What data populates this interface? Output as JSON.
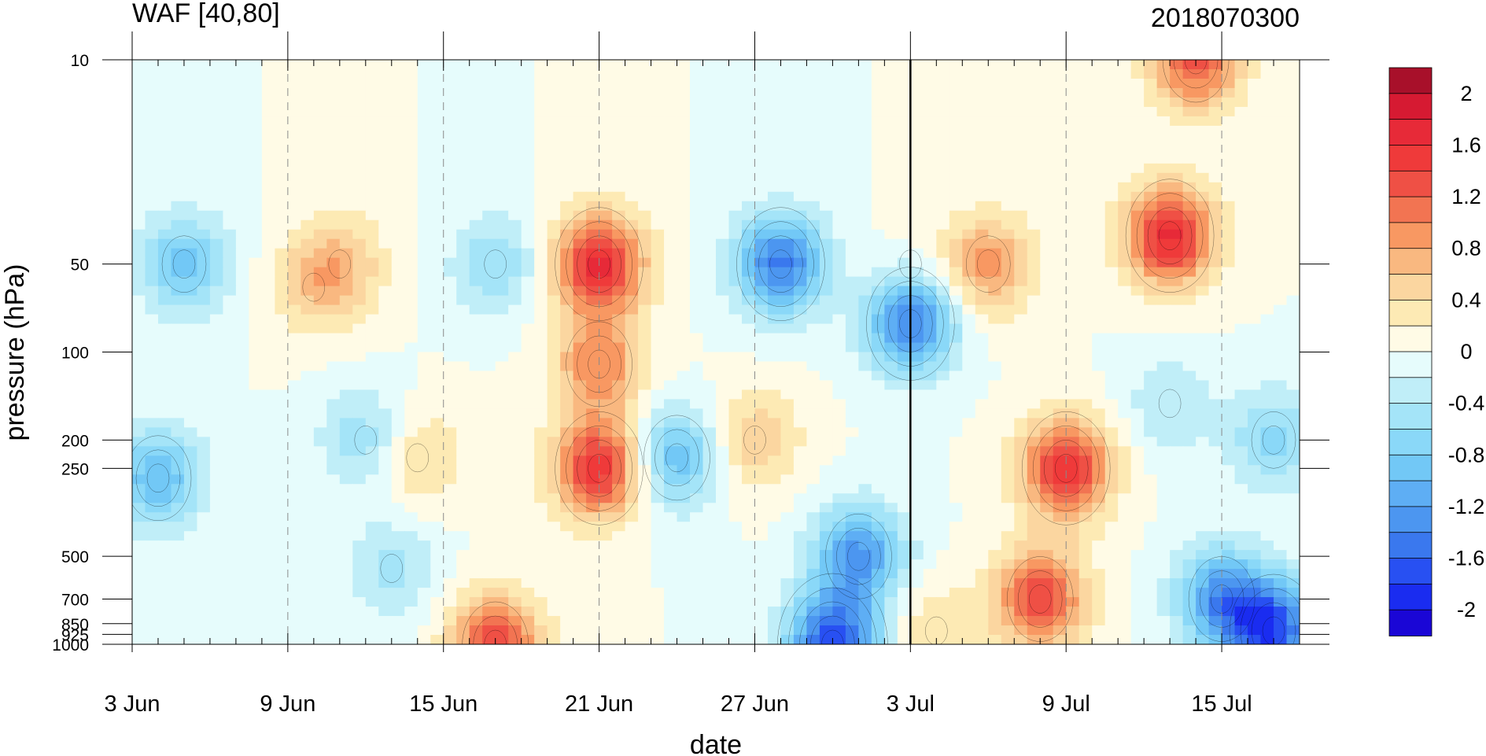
{
  "chart_data": {
    "type": "heatmap",
    "title": "WAF [40,80]",
    "subtitle": "2018070300",
    "xlabel": "date",
    "ylabel": "pressure (hPa)",
    "x_ticks": [
      "3 Jun",
      "9 Jun",
      "15 Jun",
      "21 Jun",
      "27 Jun",
      "3 Jul",
      "9 Jul",
      "15 Jul"
    ],
    "x_range_days": [
      0,
      45
    ],
    "y_ticks": [
      10,
      50,
      100,
      200,
      250,
      500,
      700,
      850,
      925,
      1000
    ],
    "y_tick_labels": [
      "10",
      "50",
      "100",
      "200",
      "250",
      "500",
      "700",
      "850",
      "925",
      "1000"
    ],
    "y_scale": "log",
    "y_range": [
      1000,
      10
    ],
    "reference_line_date": "3 Jul",
    "colorbar": {
      "labels": [
        "2",
        "1.6",
        "1.2",
        "0.8",
        "0.4",
        "0",
        "-0.4",
        "-0.8",
        "-1.2",
        "-1.6",
        "-2"
      ],
      "levels": [
        -2.2,
        -2.0,
        -1.8,
        -1.6,
        -1.4,
        -1.2,
        -1.0,
        -0.8,
        -0.6,
        -0.4,
        -0.2,
        0.0,
        0.2,
        0.4,
        0.6,
        0.8,
        1.0,
        1.2,
        1.4,
        1.6,
        1.8,
        2.0,
        2.2
      ],
      "colors": [
        "#1a06d6",
        "#1a2cf0",
        "#2850f2",
        "#3a78ee",
        "#4c96f0",
        "#5eaef4",
        "#72c8f6",
        "#8ad8f8",
        "#a4e4f8",
        "#c0eef8",
        "#e6fcfc",
        "#fffbe6",
        "#fdeab4",
        "#fbd6a0",
        "#f9b880",
        "#f89862",
        "#f27452",
        "#ef5045",
        "#ef3a3a",
        "#e72a38",
        "#d61a32",
        "#a8102a"
      ]
    },
    "features": [
      {
        "date_day": 2,
        "pressure": 50,
        "value": -0.9
      },
      {
        "date_day": 1,
        "pressure": 270,
        "value": -1.0
      },
      {
        "date_day": 8,
        "pressure": 50,
        "value": 0.6
      },
      {
        "date_day": 7,
        "pressure": 60,
        "value": 0.4
      },
      {
        "date_day": 11,
        "pressure": 230,
        "value": 0.5
      },
      {
        "date_day": 9,
        "pressure": 200,
        "value": -0.6
      },
      {
        "date_day": 10,
        "pressure": 550,
        "value": -0.5
      },
      {
        "date_day": 14,
        "pressure": 50,
        "value": -0.6
      },
      {
        "date_day": 14,
        "pressure": 1000,
        "value": 1.4
      },
      {
        "date_day": 18,
        "pressure": 50,
        "value": 1.7
      },
      {
        "date_day": 18,
        "pressure": 250,
        "value": 1.6
      },
      {
        "date_day": 18,
        "pressure": 110,
        "value": 1.0
      },
      {
        "date_day": 21,
        "pressure": 230,
        "value": -1.0
      },
      {
        "date_day": 24,
        "pressure": 200,
        "value": 0.6
      },
      {
        "date_day": 25,
        "pressure": 50,
        "value": -1.5
      },
      {
        "date_day": 27,
        "pressure": 1000,
        "value": -1.8
      },
      {
        "date_day": 28,
        "pressure": 500,
        "value": -1.3
      },
      {
        "date_day": 30,
        "pressure": 80,
        "value": -1.5
      },
      {
        "date_day": 31,
        "pressure": 900,
        "value": 0.4
      },
      {
        "date_day": 30,
        "pressure": 50,
        "value": 0.1
      },
      {
        "date_day": 33,
        "pressure": 50,
        "value": 0.9
      },
      {
        "date_day": 35,
        "pressure": 700,
        "value": 1.4
      },
      {
        "date_day": 36,
        "pressure": 250,
        "value": 1.6
      },
      {
        "date_day": 40,
        "pressure": 40,
        "value": 1.7
      },
      {
        "date_day": 41,
        "pressure": 10,
        "value": 1.3
      },
      {
        "date_day": 44,
        "pressure": 900,
        "value": -1.7
      },
      {
        "date_day": 42,
        "pressure": 700,
        "value": -1.3
      },
      {
        "date_day": 44,
        "pressure": 200,
        "value": -0.7
      },
      {
        "date_day": 40,
        "pressure": 150,
        "value": -0.4
      }
    ]
  }
}
